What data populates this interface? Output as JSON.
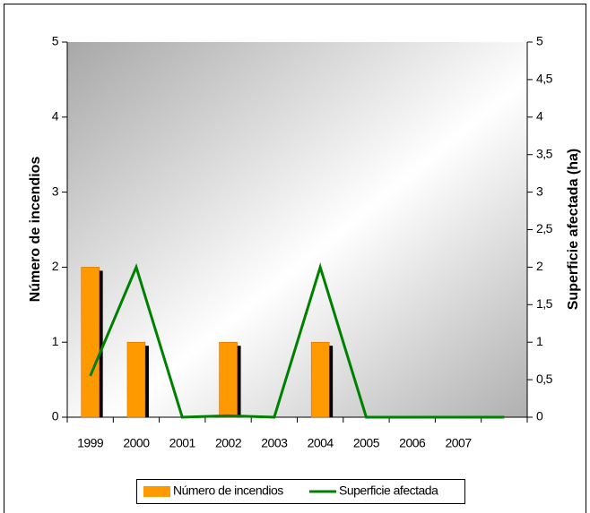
{
  "chart_data": {
    "type": "combo",
    "categories": [
      "1999",
      "2000",
      "2001",
      "2002",
      "2003",
      "2004",
      "2005",
      "2006",
      "2007",
      null
    ],
    "y_label": "Número de incendios",
    "y2_label": "Superficie afectada (ha)",
    "ylim": [
      0,
      5
    ],
    "yticks": [
      0,
      1,
      2,
      3,
      4,
      5
    ],
    "y2lim": [
      0,
      5
    ],
    "y2ticks": [
      0,
      {
        "value": 0.5,
        "label": "0,5"
      },
      1,
      {
        "value": 1.5,
        "label": "1,5"
      },
      2,
      {
        "value": 2.5,
        "label": "2,5"
      },
      3,
      {
        "value": 3.5,
        "label": "3,5"
      },
      4,
      {
        "value": 4.5,
        "label": "4,5"
      },
      5
    ],
    "series": [
      {
        "name": "Número de incendios",
        "type": "bar",
        "color": "#ff9900",
        "values": [
          2,
          1,
          0,
          1,
          0,
          1,
          0,
          0,
          0,
          0
        ]
      },
      {
        "name": "Superficie afectada",
        "type": "line",
        "axis": "y2",
        "color": "#008000",
        "values": [
          0.55,
          2,
          0,
          0.02,
          0,
          2,
          0,
          0,
          0,
          0
        ]
      }
    ]
  }
}
